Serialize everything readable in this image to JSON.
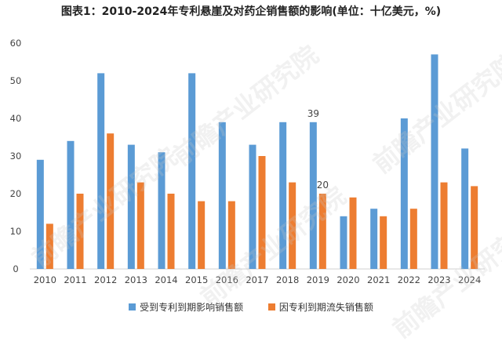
{
  "title": "图表1：2010-2024年专利悬崖及对药企销售额的影响(单位：十亿美元，%)",
  "watermark": "前瞻产业研究院",
  "chart_data": {
    "type": "bar",
    "categories": [
      "2010",
      "2011",
      "2012",
      "2013",
      "2014",
      "2015",
      "2016",
      "2017",
      "2018",
      "2019",
      "2020",
      "2021",
      "2022",
      "2023",
      "2024"
    ],
    "series": [
      {
        "name": "受到专利到期影响销售额",
        "color": "#5b9bd5",
        "values": [
          29,
          34,
          52,
          33,
          31,
          52,
          39,
          33,
          39,
          39,
          14,
          16,
          40,
          57,
          32
        ]
      },
      {
        "name": "因专利到期流失销售额",
        "color": "#ed7d31",
        "values": [
          12,
          20,
          36,
          23,
          20,
          18,
          18,
          30,
          23,
          20,
          19,
          14,
          16,
          23,
          22
        ]
      }
    ],
    "data_labels": [
      {
        "series": 0,
        "index": 9,
        "text": "39"
      },
      {
        "series": 1,
        "index": 9,
        "text": "20"
      }
    ],
    "ylim": [
      0,
      60
    ],
    "yticks": [
      0,
      10,
      20,
      30,
      40,
      50,
      60
    ],
    "legend_position": "bottom",
    "grid": false
  }
}
